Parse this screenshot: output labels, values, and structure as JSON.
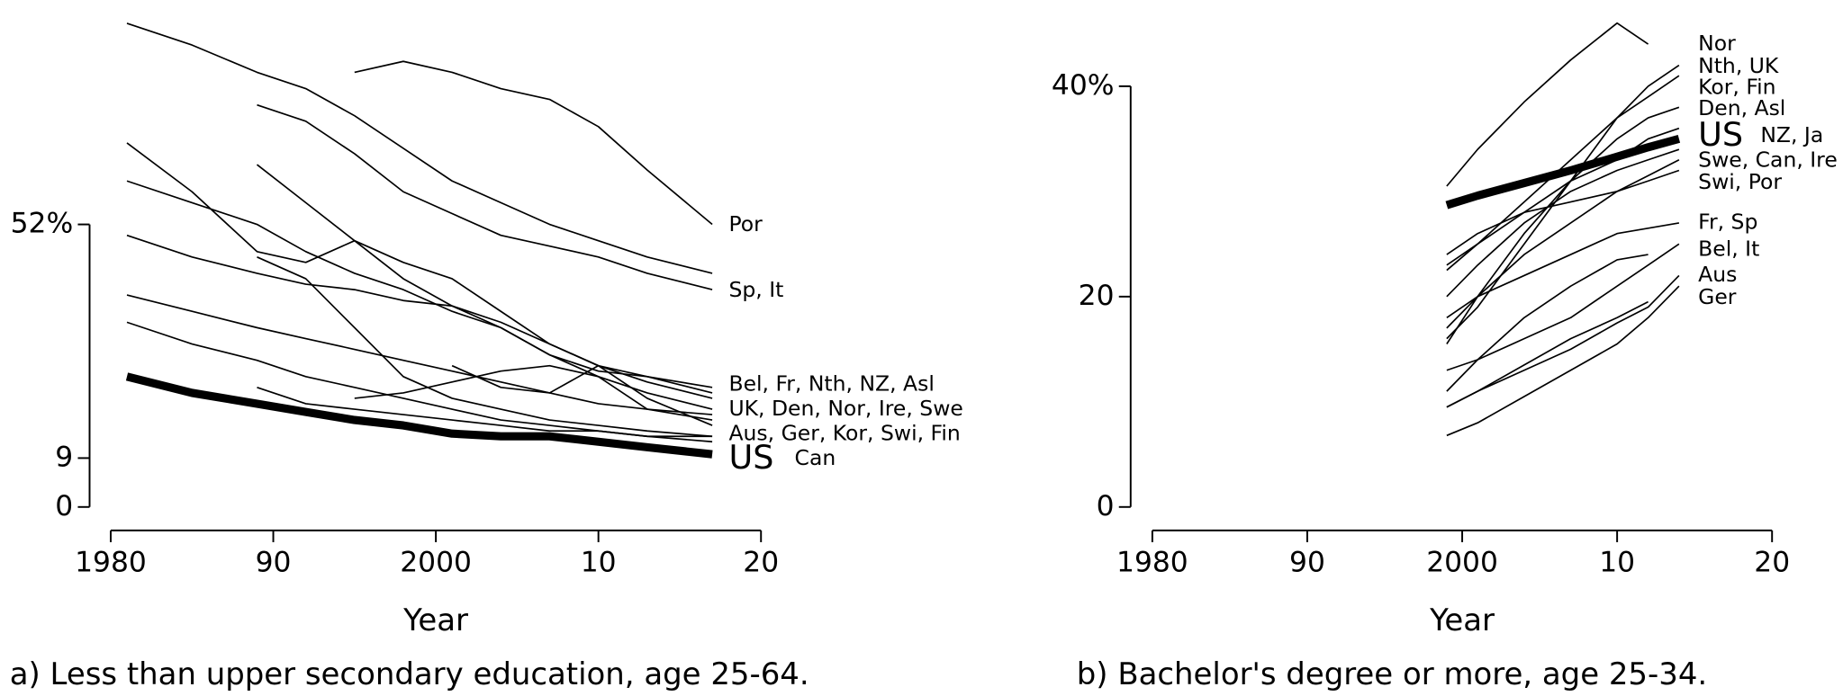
{
  "chart_data": [
    {
      "type": "line",
      "xlabel": "Year",
      "caption": "a) Less than upper secondary education, age 25-64.",
      "x": [
        1981,
        1985,
        1989,
        1992,
        1995,
        1998,
        2001,
        2004,
        2007,
        2010,
        2013,
        2017
      ],
      "xlim": [
        1978.7,
        2021.2
      ],
      "xticks": [
        1980,
        {
          "value": 1990,
          "label": "90"
        },
        2000,
        {
          "value": 2010,
          "label": "10"
        },
        {
          "value": 2020,
          "label": "20"
        }
      ],
      "ylim": [
        0,
        93.3
      ],
      "yticks": [
        0,
        9,
        {
          "value": 52,
          "label": "52%"
        }
      ],
      "series": [
        {
          "name": "US",
          "color": "#000",
          "line_width": 7,
          "values": [
            24,
            21,
            19,
            17.5,
            16,
            15,
            13.5,
            13,
            13,
            12,
            11,
            9.7
          ]
        },
        {
          "color": "#000",
          "values": [
            89,
            85,
            80,
            77,
            72,
            66,
            60,
            56,
            52,
            49,
            46,
            43
          ]
        },
        {
          "color": "#000",
          "values": [
            null,
            null,
            null,
            null,
            80,
            82,
            80,
            77,
            75,
            70,
            62,
            52
          ]
        },
        {
          "color": "#000",
          "values": [
            null,
            null,
            74,
            71,
            65,
            58,
            54,
            50,
            48,
            46,
            43,
            40
          ]
        },
        {
          "color": "#000",
          "values": [
            67,
            58,
            47,
            45,
            49,
            45,
            42,
            36,
            30,
            26,
            23,
            20
          ]
        },
        {
          "color": "#000",
          "values": [
            60,
            56,
            52,
            47,
            43,
            40,
            36,
            33,
            28,
            25,
            24,
            22
          ]
        },
        {
          "color": "#000",
          "values": [
            50,
            46,
            43,
            41,
            40,
            38,
            37,
            34,
            30,
            26,
            24,
            21
          ]
        },
        {
          "color": "#000",
          "values": [
            39,
            36,
            33,
            31,
            29,
            27,
            25,
            23,
            21,
            19,
            18,
            16
          ]
        },
        {
          "color": "#000",
          "values": [
            34,
            30,
            27,
            24,
            22,
            20,
            18,
            16,
            15,
            14,
            13,
            12
          ]
        },
        {
          "color": "#000",
          "values": [
            null,
            null,
            63,
            56,
            49,
            42,
            37,
            33,
            28,
            24,
            21,
            18
          ]
        },
        {
          "color": "#000",
          "values": [
            null,
            null,
            22,
            19,
            18,
            17,
            16,
            15,
            14,
            14,
            13,
            13
          ]
        },
        {
          "color": "#000",
          "values": [
            null,
            null,
            46,
            42,
            33,
            24,
            20,
            18,
            16,
            15,
            14,
            13
          ]
        },
        {
          "color": "#000",
          "values": [
            null,
            null,
            null,
            null,
            null,
            null,
            26,
            22,
            21,
            26,
            20,
            15
          ]
        },
        {
          "color": "#000",
          "values": [
            null,
            null,
            null,
            null,
            20,
            21,
            23,
            25,
            26,
            24,
            18,
            17
          ]
        }
      ],
      "annotations": [
        "Por",
        "Sp, It",
        "Bel, Fr, Nth, NZ, Asl",
        "UK, Den, Nor, Ire, Swe",
        "Aus, Ger, Kor, Swi, Fin",
        "Can"
      ]
    },
    {
      "type": "line",
      "xlabel": "Year",
      "caption": "b) Bachelor's degree or more, age 25-34.",
      "x": [
        1999,
        2001,
        2004,
        2007,
        2010,
        2012,
        2014
      ],
      "xlim": [
        1978.6,
        2021.3
      ],
      "xticks": [
        1980,
        {
          "value": 1990,
          "label": "90"
        },
        2000,
        {
          "value": 2010,
          "label": "10"
        },
        {
          "value": 2020,
          "label": "20"
        }
      ],
      "ylim": [
        0,
        48.2
      ],
      "yticks": [
        0,
        20,
        {
          "value": 40,
          "label": "40%"
        }
      ],
      "series": [
        {
          "name": "US",
          "color": "#000",
          "line_width": 7,
          "values": [
            28.7,
            29.6,
            30.8,
            32,
            33.3,
            34.2,
            35
          ]
        },
        {
          "color": "#000",
          "values": [
            30.5,
            34,
            38.5,
            42.5,
            46,
            44,
            null
          ]
        },
        {
          "color": "#000",
          "values": [
            22.5,
            25,
            29,
            33,
            37,
            40,
            42
          ]
        },
        {
          "color": "#000",
          "values": [
            16,
            19,
            25,
            31,
            37,
            39,
            41
          ]
        },
        {
          "color": "#000",
          "values": [
            15.5,
            20,
            26,
            31,
            35,
            37,
            38
          ]
        },
        {
          "color": "#000",
          "values": [
            23,
            25,
            28,
            31,
            33,
            35,
            36
          ]
        },
        {
          "color": "#000",
          "values": [
            20,
            23,
            27,
            30,
            32,
            33,
            34
          ]
        },
        {
          "color": "#000",
          "values": [
            17,
            20,
            24,
            27,
            30,
            31.5,
            33
          ]
        },
        {
          "color": "#000",
          "values": [
            18,
            20,
            22,
            24,
            26,
            26.5,
            27
          ]
        },
        {
          "color": "#000",
          "values": [
            13,
            14,
            16,
            18,
            21,
            23,
            25
          ]
        },
        {
          "color": "#000",
          "values": [
            11,
            14,
            18,
            21,
            23.5,
            24,
            null
          ]
        },
        {
          "color": "#000",
          "values": [
            9.5,
            11,
            13,
            15,
            17.5,
            19,
            22
          ]
        },
        {
          "color": "#000",
          "values": [
            6.8,
            8,
            10.5,
            13,
            15.5,
            18,
            21
          ]
        },
        {
          "color": "#000",
          "values": [
            9.5,
            11,
            13.5,
            16,
            18,
            19.5,
            null
          ]
        },
        {
          "color": "#000",
          "values": [
            24,
            26,
            28,
            29,
            30,
            31,
            32
          ]
        }
      ],
      "annotations": [
        "Nor",
        "Nth, UK",
        "Kor, Fin",
        "Den, Asl",
        "NZ, Ja",
        "Swe, Can, Ire",
        "Swi, Por",
        "Fr, Sp",
        "Bel, It",
        "Aus",
        "Ger"
      ]
    }
  ]
}
